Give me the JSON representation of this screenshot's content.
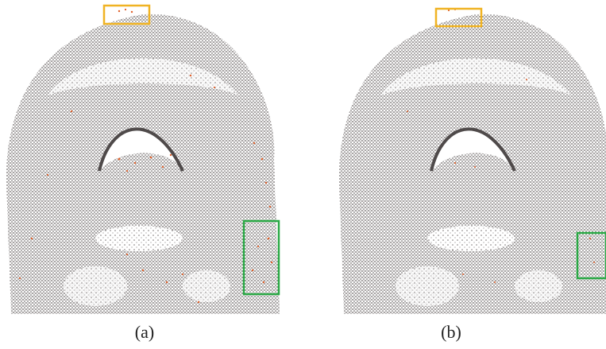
{
  "figure": {
    "panels": [
      {
        "id": "a",
        "caption": "(a)",
        "highlight_boxes": [
          {
            "name": "top-box",
            "color": "#f0b323"
          },
          {
            "name": "side-box",
            "color": "#2aa845"
          }
        ]
      },
      {
        "id": "b",
        "caption": "(b)",
        "highlight_boxes": [
          {
            "name": "top-box",
            "color": "#f0b323"
          },
          {
            "name": "side-box",
            "color": "#2aa845"
          }
        ]
      }
    ],
    "colors": {
      "point_gray": "#6b6565",
      "point_dark": "#4f4a4a",
      "outlier_orange": "#e0602a",
      "highlight_yellow": "#f0b323",
      "highlight_green": "#2aa845"
    }
  }
}
